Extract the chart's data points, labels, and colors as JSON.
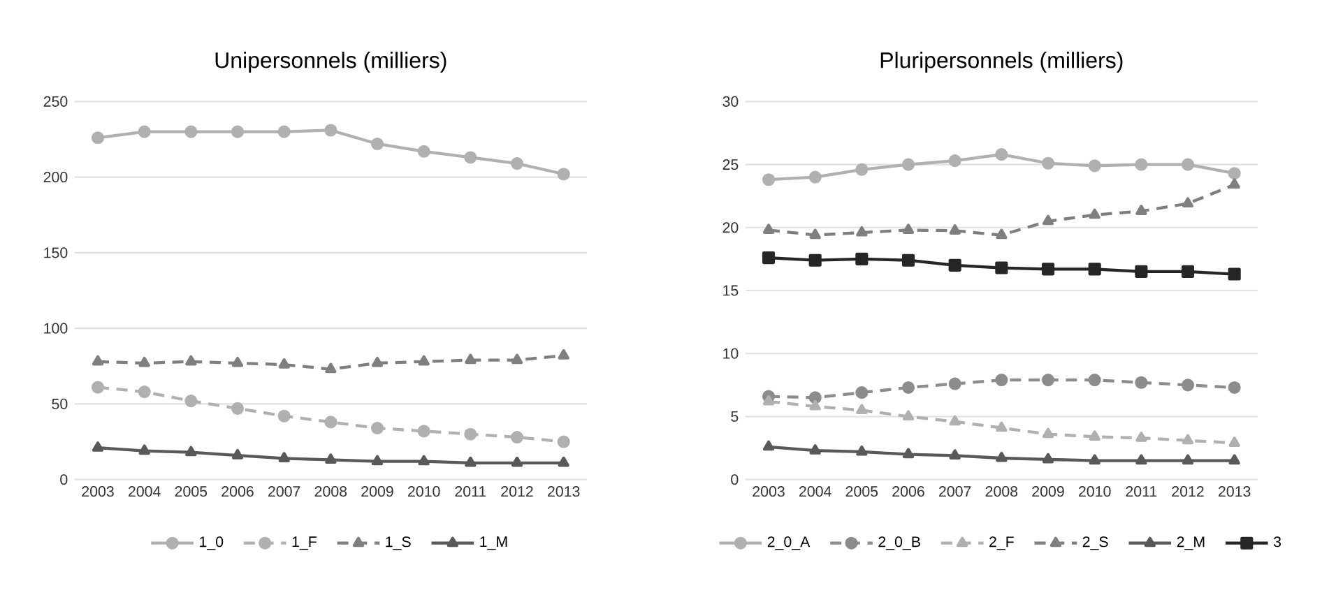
{
  "chart_data": [
    {
      "type": "line",
      "title": "Unipersonnels (milliers)",
      "categories": [
        "2003",
        "2004",
        "2005",
        "2006",
        "2007",
        "2008",
        "2009",
        "2010",
        "2011",
        "2012",
        "2013"
      ],
      "ylim": [
        0,
        250
      ],
      "yticks": [
        0,
        50,
        100,
        150,
        200,
        250
      ],
      "grid": "y",
      "legend": "bottom",
      "series": [
        {
          "name": "1_0",
          "color": "#b0b0b0",
          "marker": "circle",
          "line_style": "solid",
          "values": [
            226,
            230,
            230,
            230,
            230,
            231,
            222,
            217,
            213,
            209,
            202
          ]
        },
        {
          "name": "1_F",
          "color": "#b0b0b0",
          "marker": "circle",
          "line_style": "dashed",
          "values": [
            61,
            58,
            52,
            47,
            42,
            38,
            34,
            32,
            30,
            28,
            25
          ]
        },
        {
          "name": "1_S",
          "color": "#7f7f7f",
          "marker": "triangle",
          "line_style": "dashed",
          "values": [
            78,
            77,
            78,
            77,
            76,
            73,
            77,
            78,
            79,
            79,
            82
          ]
        },
        {
          "name": "1_M",
          "color": "#595959",
          "marker": "triangle",
          "line_style": "solid",
          "values": [
            21,
            19,
            18,
            16,
            14,
            13,
            12,
            12,
            11,
            11,
            11
          ]
        }
      ]
    },
    {
      "type": "line",
      "title": "Pluripersonnels (milliers)",
      "categories": [
        "2003",
        "2004",
        "2005",
        "2006",
        "2007",
        "2008",
        "2009",
        "2010",
        "2011",
        "2012",
        "2013"
      ],
      "ylim": [
        0,
        30
      ],
      "yticks": [
        0,
        5,
        10,
        15,
        20,
        25,
        30
      ],
      "grid": "y",
      "legend": "bottom",
      "series": [
        {
          "name": "2_0_A",
          "color": "#b0b0b0",
          "marker": "circle",
          "line_style": "solid",
          "values": [
            23.8,
            24.0,
            24.6,
            25.0,
            25.3,
            25.8,
            25.1,
            24.9,
            25.0,
            25.0,
            24.3
          ]
        },
        {
          "name": "2_0_B",
          "color": "#8c8c8c",
          "marker": "circle",
          "line_style": "dashed",
          "values": [
            6.6,
            6.5,
            6.9,
            7.3,
            7.6,
            7.9,
            7.9,
            7.9,
            7.7,
            7.5,
            7.3
          ]
        },
        {
          "name": "2_F",
          "color": "#b0b0b0",
          "marker": "triangle",
          "line_style": "dashed",
          "values": [
            6.2,
            5.8,
            5.5,
            5.0,
            4.6,
            4.1,
            3.6,
            3.4,
            3.3,
            3.1,
            2.9
          ]
        },
        {
          "name": "2_S",
          "color": "#7f7f7f",
          "marker": "triangle",
          "line_style": "dashed",
          "values": [
            19.8,
            19.4,
            19.6,
            19.8,
            19.75,
            19.4,
            20.5,
            21.0,
            21.3,
            21.9,
            23.4
          ]
        },
        {
          "name": "2_M",
          "color": "#595959",
          "marker": "triangle",
          "line_style": "solid",
          "values": [
            2.6,
            2.3,
            2.2,
            2.0,
            1.9,
            1.7,
            1.6,
            1.5,
            1.5,
            1.5,
            1.5
          ]
        },
        {
          "name": "3",
          "color": "#262626",
          "marker": "square",
          "line_style": "solid",
          "values": [
            17.6,
            17.4,
            17.5,
            17.4,
            17.0,
            16.8,
            16.7,
            16.7,
            16.5,
            16.5,
            16.3
          ]
        }
      ]
    }
  ]
}
